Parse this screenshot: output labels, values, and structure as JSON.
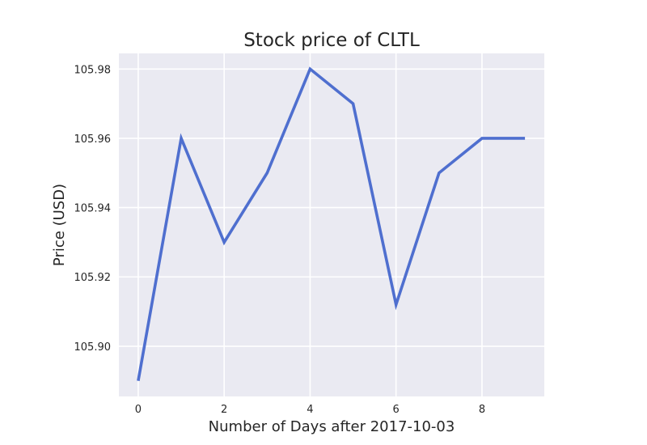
{
  "chart_data": {
    "type": "line",
    "title": "Stock price of CLTL",
    "xlabel": "Number of Days after 2017-10-03",
    "ylabel": "Price (USD)",
    "x": [
      0,
      1,
      2,
      3,
      4,
      5,
      6,
      7,
      8,
      9
    ],
    "series": [
      {
        "values": [
          105.89,
          105.96,
          105.93,
          105.95,
          105.98,
          105.97,
          105.912,
          105.95,
          105.96,
          105.96
        ]
      }
    ],
    "xticks": [
      0,
      2,
      4,
      6,
      8
    ],
    "xtick_labels": [
      "0",
      "2",
      "4",
      "6",
      "8"
    ],
    "yticks": [
      105.9,
      105.92,
      105.94,
      105.96,
      105.98
    ],
    "ytick_labels": [
      "105.90",
      "105.92",
      "105.94",
      "105.96",
      "105.98"
    ],
    "xlim": [
      -0.45,
      9.45
    ],
    "ylim": [
      105.8855,
      105.9845
    ],
    "grid": true,
    "colors": {
      "line": "#4f6fcf",
      "plot_background": "#eaeaf2",
      "grid": "#ffffff",
      "text": "#262626"
    }
  }
}
